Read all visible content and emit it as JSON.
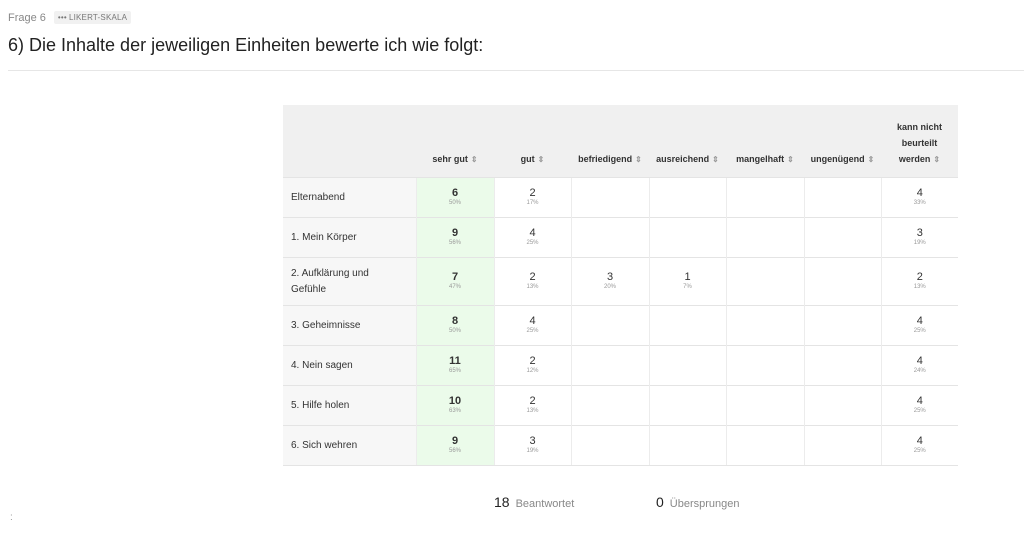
{
  "question": {
    "number_label": "Frage 6",
    "type_badge": "LIKERT-SKALA",
    "title": "6) Die Inhalte der jeweiligen Einheiten bewerte ich wie folgt:"
  },
  "table": {
    "sort_icon": "⇕",
    "columns": [
      {
        "label": "sehr gut",
        "highlight": true
      },
      {
        "label": "gut"
      },
      {
        "label": "befriedigend"
      },
      {
        "label": "ausreichend"
      },
      {
        "label": "mangelhaft"
      },
      {
        "label": "ungenügend"
      },
      {
        "label": "kann nicht beurteilt werden"
      }
    ],
    "rows": [
      {
        "label": "Elternabend",
        "cells": [
          {
            "count": "6",
            "pct": "50%"
          },
          {
            "count": "2",
            "pct": "17%"
          },
          {},
          {},
          {},
          {},
          {
            "count": "4",
            "pct": "33%"
          }
        ]
      },
      {
        "label": "1. Mein Körper",
        "cells": [
          {
            "count": "9",
            "pct": "56%"
          },
          {
            "count": "4",
            "pct": "25%"
          },
          {},
          {},
          {},
          {},
          {
            "count": "3",
            "pct": "19%"
          }
        ]
      },
      {
        "label": "2. Aufklärung und Gefühle",
        "cells": [
          {
            "count": "7",
            "pct": "47%"
          },
          {
            "count": "2",
            "pct": "13%"
          },
          {
            "count": "3",
            "pct": "20%"
          },
          {
            "count": "1",
            "pct": "7%"
          },
          {},
          {},
          {
            "count": "2",
            "pct": "13%"
          }
        ]
      },
      {
        "label": "3. Geheimnisse",
        "cells": [
          {
            "count": "8",
            "pct": "50%"
          },
          {
            "count": "4",
            "pct": "25%"
          },
          {},
          {},
          {},
          {},
          {
            "count": "4",
            "pct": "25%"
          }
        ]
      },
      {
        "label": "4. Nein sagen",
        "cells": [
          {
            "count": "11",
            "pct": "65%"
          },
          {
            "count": "2",
            "pct": "12%"
          },
          {},
          {},
          {},
          {},
          {
            "count": "4",
            "pct": "24%"
          }
        ]
      },
      {
        "label": "5. Hilfe holen",
        "cells": [
          {
            "count": "10",
            "pct": "63%"
          },
          {
            "count": "2",
            "pct": "13%"
          },
          {},
          {},
          {},
          {},
          {
            "count": "4",
            "pct": "25%"
          }
        ]
      },
      {
        "label": "6. Sich wehren",
        "cells": [
          {
            "count": "9",
            "pct": "56%"
          },
          {
            "count": "3",
            "pct": "19%"
          },
          {},
          {},
          {},
          {},
          {
            "count": "4",
            "pct": "25%"
          }
        ]
      }
    ]
  },
  "summary": {
    "answered_count": "18",
    "answered_label": "Beantwortet",
    "skipped_count": "0",
    "skipped_label": "Übersprungen"
  },
  "corner_mark": ":"
}
